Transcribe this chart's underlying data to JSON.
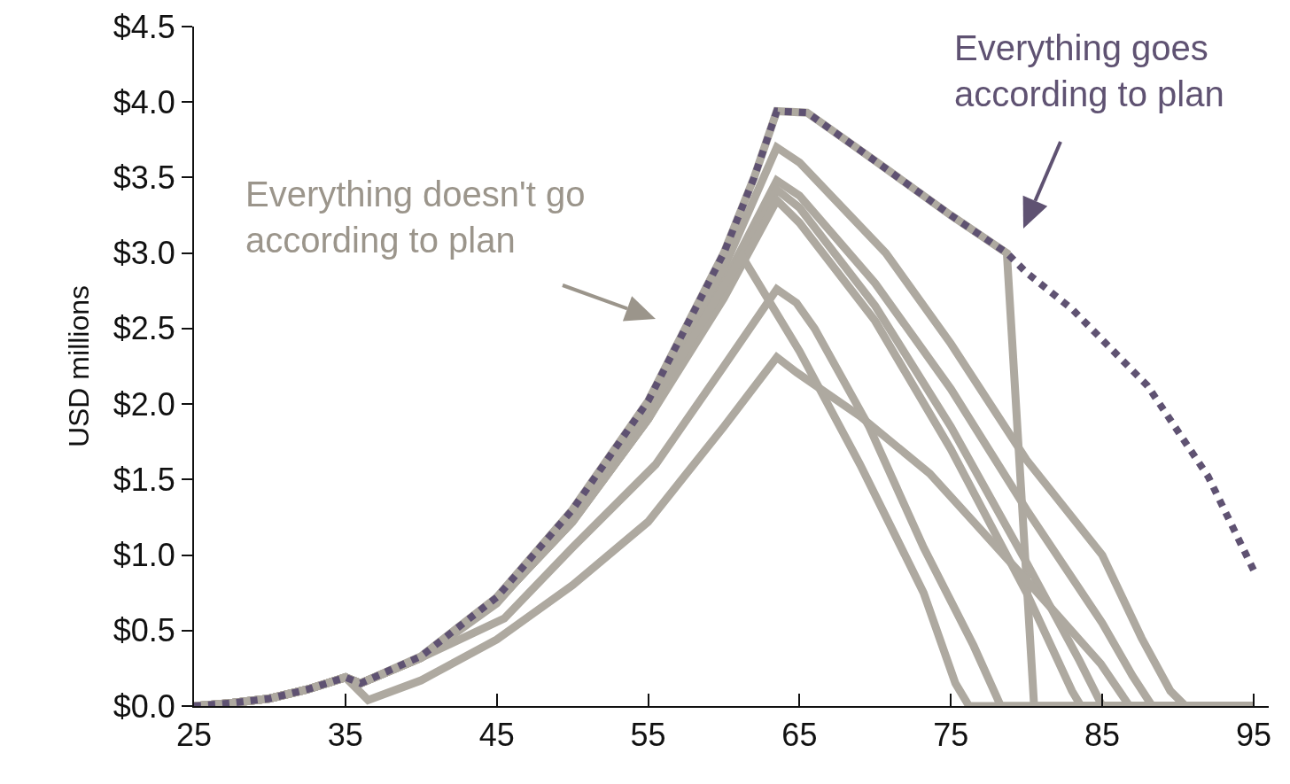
{
  "chart_data": {
    "type": "line",
    "ylabel": "USD millions",
    "xlim": [
      25,
      96
    ],
    "xticks": [
      25,
      35,
      45,
      55,
      65,
      75,
      85,
      95
    ],
    "ylim": [
      0,
      4.5
    ],
    "yticks": [
      {
        "value": 0,
        "label": "$0.0"
      },
      {
        "value": 0.5,
        "label": "$0.5"
      },
      {
        "value": 1,
        "label": "$1.0"
      },
      {
        "value": 1.5,
        "label": "$1.5"
      },
      {
        "value": 2,
        "label": "$2.0"
      },
      {
        "value": 2.5,
        "label": "$2.5"
      },
      {
        "value": 3,
        "label": "$3.0"
      },
      {
        "value": 3.5,
        "label": "$3.5"
      },
      {
        "value": 4,
        "label": "$4.0"
      },
      {
        "value": 4.5,
        "label": "$4.5"
      }
    ],
    "grid": false,
    "marker": "none",
    "annotations": [
      "Everything doesn't go according to plan",
      "Everything goes according to plan"
    ],
    "series": [
      {
        "color": "#aea9a0",
        "line_style": "solid",
        "x": [
          25,
          27.5,
          30,
          32.5,
          35,
          36,
          40,
          45,
          50,
          55,
          60,
          62,
          63.5,
          65.5,
          70,
          75,
          78.7,
          80.5,
          95
        ],
        "values": [
          0,
          0.02,
          0.05,
          0.11,
          0.19,
          0.15,
          0.33,
          0.72,
          1.3,
          2.02,
          3.0,
          3.5,
          3.94,
          3.93,
          3.61,
          3.25,
          3.0,
          0,
          0
        ]
      },
      {
        "color": "#aea9a0",
        "line_style": "solid",
        "x": [
          25,
          27.5,
          30,
          32.5,
          35,
          36,
          40,
          45,
          50,
          55,
          60,
          63.5,
          65,
          70.7,
          75,
          80,
          85,
          87.6,
          89.5,
          90.5,
          95
        ],
        "values": [
          0,
          0.02,
          0.05,
          0.11,
          0.19,
          0.15,
          0.32,
          0.7,
          1.26,
          1.95,
          2.9,
          3.7,
          3.6,
          3.0,
          2.4,
          1.63,
          1.0,
          0.45,
          0.1,
          0,
          0
        ]
      },
      {
        "color": "#aea9a0",
        "line_style": "solid",
        "x": [
          25,
          27.5,
          30,
          32.5,
          35,
          36,
          40,
          45,
          50,
          55,
          60,
          63.5,
          65,
          70,
          75,
          80,
          85,
          87,
          88.3,
          95
        ],
        "values": [
          0,
          0.02,
          0.05,
          0.11,
          0.19,
          0.15,
          0.32,
          0.69,
          1.22,
          1.9,
          2.8,
          3.48,
          3.38,
          2.8,
          2.1,
          1.3,
          0.55,
          0.2,
          0,
          0
        ]
      },
      {
        "color": "#aea9a0",
        "line_style": "solid",
        "x": [
          25,
          27.5,
          30,
          32.5,
          35,
          36,
          40,
          45,
          50,
          55,
          60,
          63.5,
          65,
          70,
          75,
          80,
          83.5,
          85,
          95
        ],
        "values": [
          0,
          0.02,
          0.05,
          0.11,
          0.19,
          0.15,
          0.32,
          0.69,
          1.22,
          1.9,
          2.75,
          3.42,
          3.3,
          2.65,
          1.85,
          0.95,
          0.3,
          0,
          0
        ]
      },
      {
        "color": "#aea9a0",
        "line_style": "solid",
        "x": [
          25,
          27.5,
          30,
          32.5,
          35,
          36,
          40,
          45,
          50,
          55,
          60,
          63.5,
          65,
          70,
          75,
          80,
          83,
          83.6,
          95
        ],
        "values": [
          0,
          0.02,
          0.05,
          0.11,
          0.19,
          0.15,
          0.32,
          0.69,
          1.22,
          1.9,
          2.7,
          3.35,
          3.2,
          2.55,
          1.7,
          0.75,
          0.1,
          0,
          0
        ]
      },
      {
        "color": "#aea9a0",
        "line_style": "solid",
        "x": [
          25,
          27.5,
          30,
          32.5,
          35,
          36,
          40,
          45,
          49.6,
          55,
          61.2,
          65,
          69,
          73.2,
          75.3,
          76.2,
          95
        ],
        "values": [
          0,
          0.02,
          0.05,
          0.11,
          0.19,
          0.15,
          0.32,
          0.68,
          1.2,
          1.95,
          2.98,
          2.35,
          1.6,
          0.75,
          0.15,
          0,
          0
        ]
      },
      {
        "color": "#aea9a0",
        "line_style": "solid",
        "x": [
          25,
          27.5,
          30,
          32.5,
          35,
          36,
          40,
          45.5,
          50,
          55.5,
          60,
          63.5,
          64.8,
          66,
          69.6,
          73.2,
          76.5,
          78.3,
          95
        ],
        "values": [
          0,
          0.02,
          0.05,
          0.11,
          0.19,
          0.15,
          0.32,
          0.58,
          1.05,
          1.6,
          2.25,
          2.76,
          2.67,
          2.5,
          1.85,
          1.05,
          0.4,
          0,
          0
        ]
      },
      {
        "color": "#aea9a0",
        "line_style": "solid",
        "x": [
          25,
          27.5,
          30,
          32.5,
          35,
          36.5,
          40,
          45,
          50,
          55,
          60,
          63.5,
          64.8,
          69,
          73.6,
          76.5,
          79.4,
          84.9,
          86.8,
          95
        ],
        "values": [
          0,
          0.02,
          0.05,
          0.11,
          0.19,
          0.04,
          0.17,
          0.44,
          0.8,
          1.22,
          1.85,
          2.31,
          2.21,
          1.92,
          1.54,
          1.22,
          0.9,
          0.28,
          0,
          0
        ]
      },
      {
        "color": "#5f5272",
        "line_style": "dotted",
        "x": [
          25,
          27.5,
          30,
          32.5,
          35,
          36,
          40,
          45,
          50,
          55,
          60,
          62,
          63.5,
          65.5,
          70,
          75,
          78.7,
          80,
          83,
          88,
          92,
          95
        ],
        "values": [
          0,
          0.02,
          0.05,
          0.11,
          0.19,
          0.15,
          0.33,
          0.72,
          1.3,
          2.02,
          3.0,
          3.5,
          3.94,
          3.93,
          3.61,
          3.25,
          3.0,
          2.87,
          2.63,
          2.12,
          1.52,
          0.9
        ]
      }
    ]
  }
}
